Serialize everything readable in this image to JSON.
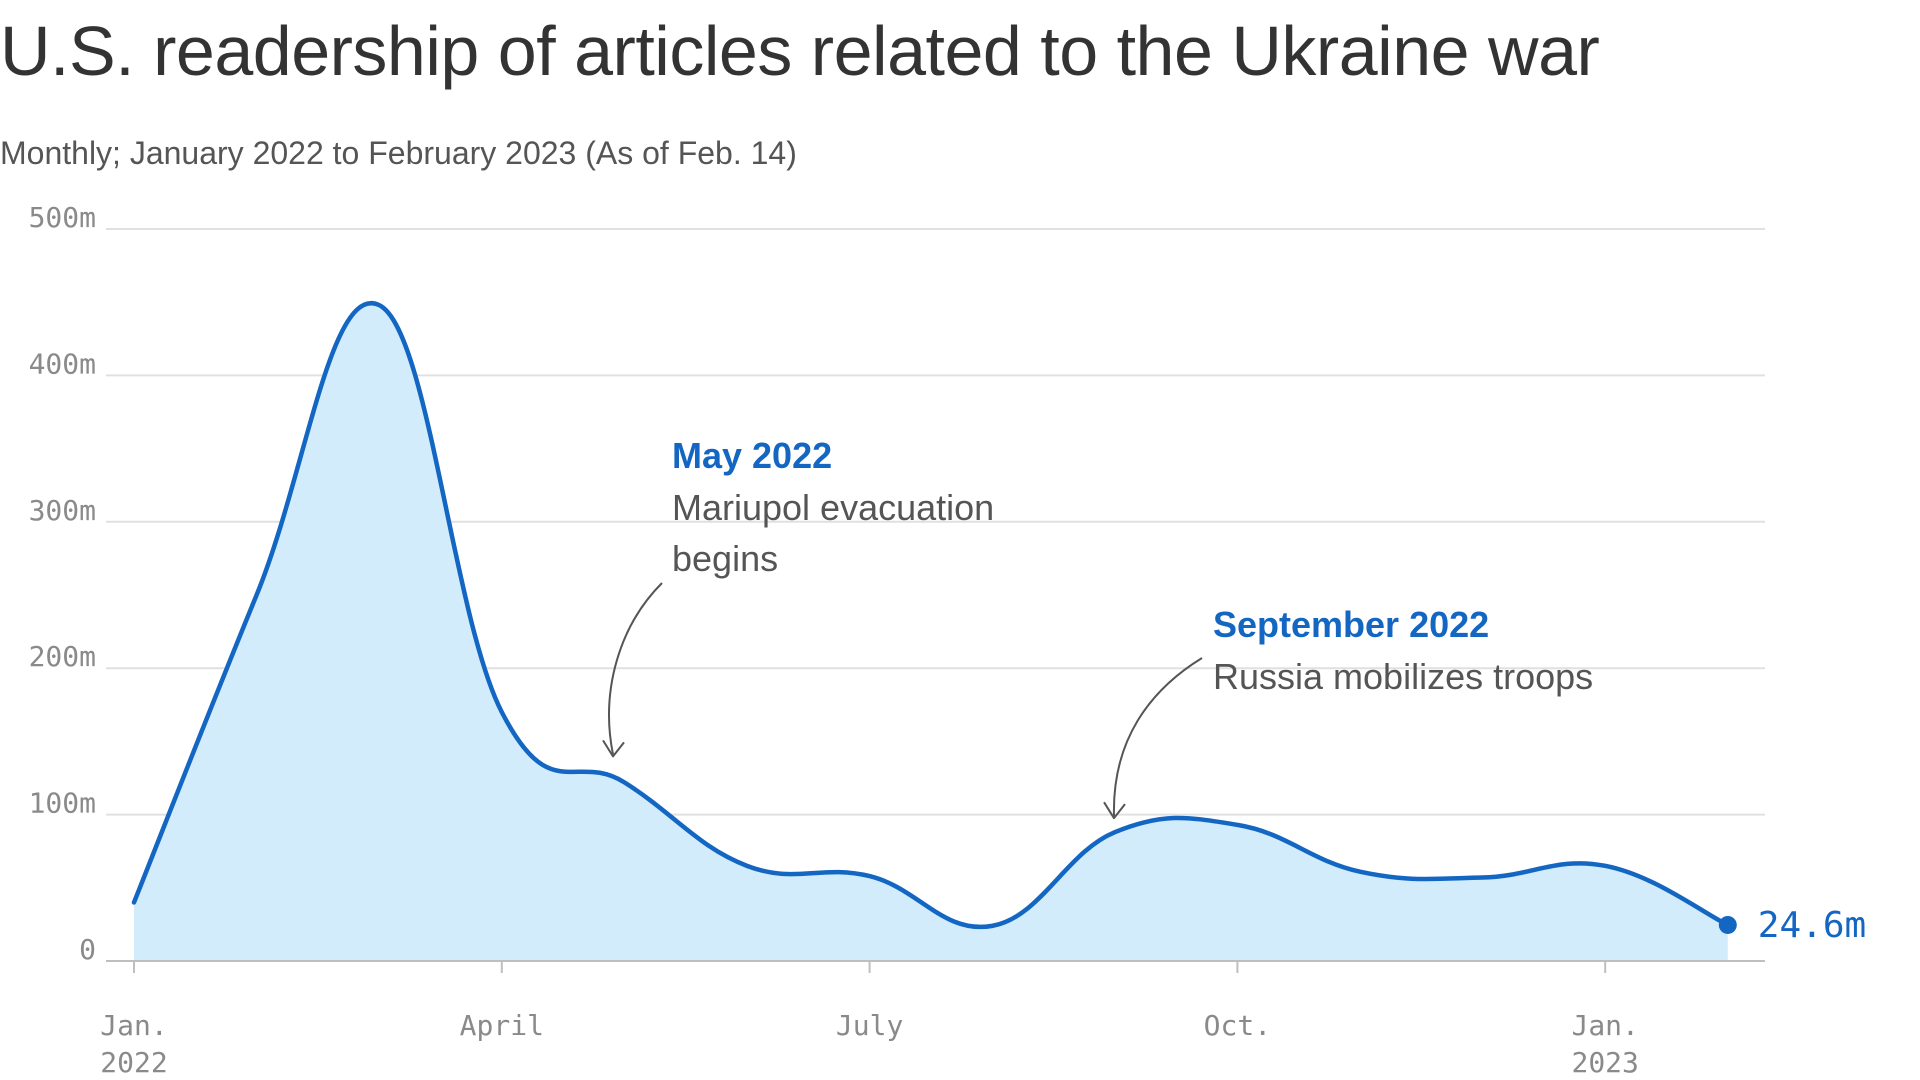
{
  "chart_data": {
    "type": "area",
    "title": "U.S. readership of articles related to the Ukraine war",
    "subtitle": "Monthly; January 2022 to February 2023 (As of Feb. 14)",
    "x": [
      "2022-01",
      "2022-02",
      "2022-03",
      "2022-04",
      "2022-05",
      "2022-06",
      "2022-07",
      "2022-08",
      "2022-09",
      "2022-10",
      "2022-11",
      "2022-12",
      "2023-01",
      "2023-02"
    ],
    "values": [
      40,
      250,
      448,
      170,
      122,
      65,
      58,
      24,
      88,
      93,
      61,
      57,
      65,
      24.6
    ],
    "ylim": [
      0,
      500
    ],
    "y_ticks": [
      {
        "value": 500,
        "label": "500m"
      },
      {
        "value": 400,
        "label": "400m"
      },
      {
        "value": 300,
        "label": "300m"
      },
      {
        "value": 200,
        "label": "200m"
      },
      {
        "value": 100,
        "label": "100m"
      },
      {
        "value": 0,
        "label": "0"
      }
    ],
    "x_ticks": [
      {
        "x": "2022-01",
        "line1": "Jan.",
        "line2": "2022"
      },
      {
        "x": "2022-04",
        "line1": "April",
        "line2": ""
      },
      {
        "x": "2022-07",
        "line1": "July",
        "line2": ""
      },
      {
        "x": "2022-10",
        "line1": "Oct.",
        "line2": ""
      },
      {
        "x": "2023-01",
        "line1": "Jan.",
        "line2": "2023"
      }
    ],
    "annotations": [
      {
        "x": "2022-05",
        "heading": "May 2022",
        "lines": [
          "Mariupol evacuation",
          "begins"
        ]
      },
      {
        "x": "2022-09",
        "heading": "September 2022",
        "lines": [
          "Russia mobilizes troops"
        ]
      }
    ],
    "end_label": "24.6m",
    "grid": true,
    "colors": {
      "line": "#1366c2",
      "fill": "#d2ecfb",
      "grid": "#e0e0e0",
      "axis": "#bfbfbf",
      "annotation_heading": "#1366c2",
      "arrow": "#555555"
    }
  }
}
